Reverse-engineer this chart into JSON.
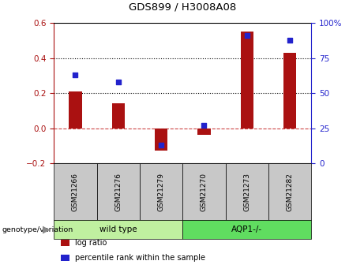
{
  "title": "GDS899 / H3008A08",
  "samples": [
    "GSM21266",
    "GSM21276",
    "GSM21279",
    "GSM21270",
    "GSM21273",
    "GSM21282"
  ],
  "log_ratios": [
    0.21,
    0.14,
    -0.13,
    -0.04,
    0.55,
    0.43
  ],
  "percentile_ranks": [
    63,
    58,
    13,
    27,
    91,
    88
  ],
  "groups": [
    {
      "label": "wild type",
      "n": 3,
      "color": "#c0f0a0"
    },
    {
      "label": "AQP1-/-",
      "n": 3,
      "color": "#60dd60"
    }
  ],
  "bar_color": "#aa1111",
  "dot_color": "#2222cc",
  "left_ylim": [
    -0.2,
    0.6
  ],
  "right_ylim": [
    0,
    100
  ],
  "left_yticks": [
    -0.2,
    0.0,
    0.2,
    0.4,
    0.6
  ],
  "right_yticks": [
    0,
    25,
    50,
    75,
    100
  ],
  "right_yticklabels": [
    "0",
    "25",
    "50",
    "75",
    "100%"
  ],
  "dotted_line_values": [
    0.2,
    0.4
  ],
  "zero_line_color": "#cc4444",
  "sample_box_color": "#c8c8c8",
  "legend_items": [
    {
      "label": "log ratio",
      "color": "#aa1111"
    },
    {
      "label": "percentile rank within the sample",
      "color": "#2222cc"
    }
  ],
  "genotype_label": "genotype/variation"
}
